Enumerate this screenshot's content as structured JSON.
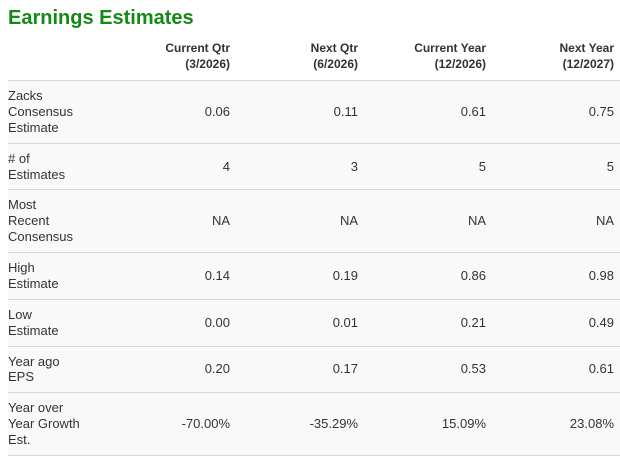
{
  "title": "Earnings Estimates",
  "colors": {
    "title_green": "#148a14",
    "text": "#333333",
    "divider": "#d8d8d8",
    "row_bg": "#f9f9f9",
    "page_bg": "#ffffff"
  },
  "table": {
    "columns": [
      {
        "label": "Current Qtr",
        "sublabel": "(3/2026)"
      },
      {
        "label": "Next Qtr",
        "sublabel": "(6/2026)"
      },
      {
        "label": "Current Year",
        "sublabel": "(12/2026)"
      },
      {
        "label": "Next Year",
        "sublabel": "(12/2027)"
      }
    ],
    "rows": [
      {
        "label": "Zacks Consensus Estimate",
        "values": [
          "0.06",
          "0.11",
          "0.61",
          "0.75"
        ]
      },
      {
        "label": "# of Estimates",
        "values": [
          "4",
          "3",
          "5",
          "5"
        ]
      },
      {
        "label": "Most Recent Consensus",
        "values": [
          "NA",
          "NA",
          "NA",
          "NA"
        ]
      },
      {
        "label": "High Estimate",
        "values": [
          "0.14",
          "0.19",
          "0.86",
          "0.98"
        ]
      },
      {
        "label": "Low Estimate",
        "values": [
          "0.00",
          "0.01",
          "0.21",
          "0.49"
        ]
      },
      {
        "label": "Year ago EPS",
        "values": [
          "0.20",
          "0.17",
          "0.53",
          "0.61"
        ]
      },
      {
        "label": "Year over Year Growth Est.",
        "values": [
          "-70.00%",
          "-35.29%",
          "15.09%",
          "23.08%"
        ]
      }
    ]
  },
  "chart_data": {
    "type": "table",
    "title": "Earnings Estimates",
    "categories": [
      "Current Qtr (3/2026)",
      "Next Qtr (6/2026)",
      "Current Year (12/2026)",
      "Next Year (12/2027)"
    ],
    "series": [
      {
        "name": "Zacks Consensus Estimate",
        "values": [
          0.06,
          0.11,
          0.61,
          0.75
        ]
      },
      {
        "name": "# of Estimates",
        "values": [
          4,
          3,
          5,
          5
        ]
      },
      {
        "name": "Most Recent Consensus",
        "values": [
          "NA",
          "NA",
          "NA",
          "NA"
        ]
      },
      {
        "name": "High Estimate",
        "values": [
          0.14,
          0.19,
          0.86,
          0.98
        ]
      },
      {
        "name": "Low Estimate",
        "values": [
          0.0,
          0.01,
          0.21,
          0.49
        ]
      },
      {
        "name": "Year ago EPS",
        "values": [
          0.2,
          0.17,
          0.53,
          0.61
        ]
      },
      {
        "name": "Year over Year Growth Est.",
        "values": [
          "-70.00%",
          "-35.29%",
          "15.09%",
          "23.08%"
        ]
      }
    ]
  }
}
